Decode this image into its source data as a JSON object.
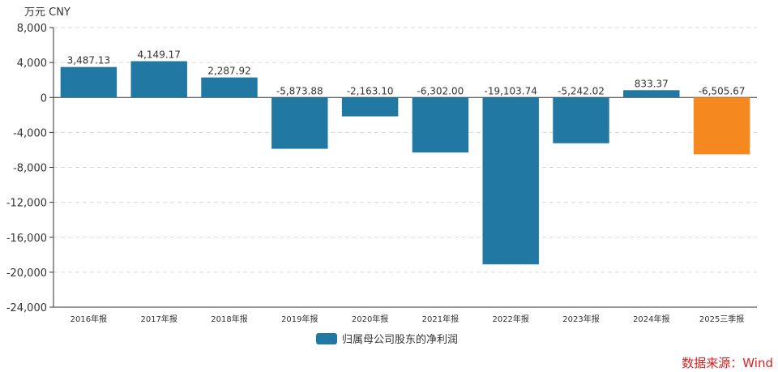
{
  "unit_label": "万元  CNY",
  "source_label": "数据来源：Wind",
  "colors": {
    "bar": "#2178a3",
    "highlight": "#f5891f",
    "grid": "#d9d9d9",
    "axis": "#333333",
    "text": "#333333",
    "source": "#e02020"
  },
  "chart_data": {
    "type": "bar",
    "categories": [
      "2016年报",
      "2017年报",
      "2018年报",
      "2019年报",
      "2020年报",
      "2021年报",
      "2022年报",
      "2023年报",
      "2024年报",
      "2025三季报"
    ],
    "series": [
      {
        "name": "归属母公司股东的净利润",
        "values": [
          3487.13,
          4149.17,
          2287.92,
          -5873.88,
          -2163.1,
          -6302.0,
          -19103.74,
          -5242.02,
          833.37,
          -6505.67
        ]
      }
    ],
    "value_labels": [
      "3,487.13",
      "4,149.17",
      "2,287.92",
      "-5,873.88",
      "-2,163.10",
      "-6,302.00",
      "-19,103.74",
      "-5,242.02",
      "833.37",
      "-6,505.67"
    ],
    "highlight_index": 9,
    "yticks": [
      8000,
      4000,
      0,
      -4000,
      -8000,
      -12000,
      -16000,
      -20000,
      -24000
    ],
    "ytick_labels": [
      "8,000",
      "4,000",
      "0",
      "-4,000",
      "-8,000",
      "-12,000",
      "-16,000",
      "-20,000",
      "-24,000"
    ],
    "ylim": [
      -24000,
      8000
    ],
    "grid": true,
    "legend_position": "bottom-center"
  }
}
